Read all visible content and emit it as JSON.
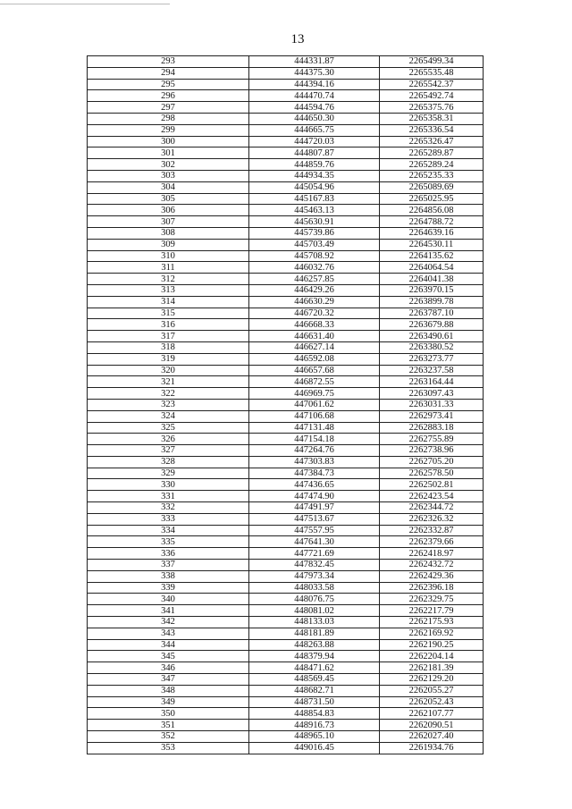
{
  "page_number": "13",
  "table": {
    "rows": [
      [
        "293",
        "444331.87",
        "2265499.34"
      ],
      [
        "294",
        "444375.30",
        "2265535.48"
      ],
      [
        "295",
        "444394.16",
        "2265542.37"
      ],
      [
        "296",
        "444470.74",
        "2265492.74"
      ],
      [
        "297",
        "444594.76",
        "2265375.76"
      ],
      [
        "298",
        "444650.30",
        "2265358.31"
      ],
      [
        "299",
        "444665.75",
        "2265336.54"
      ],
      [
        "300",
        "444720.03",
        "2265326.47"
      ],
      [
        "301",
        "444807.87",
        "2265289.87"
      ],
      [
        "302",
        "444859.76",
        "2265289.24"
      ],
      [
        "303",
        "444934.35",
        "2265235.33"
      ],
      [
        "304",
        "445054.96",
        "2265089.69"
      ],
      [
        "305",
        "445167.83",
        "2265025.95"
      ],
      [
        "306",
        "445463.13",
        "2264856.08"
      ],
      [
        "307",
        "445630.91",
        "2264788.72"
      ],
      [
        "308",
        "445739.86",
        "2264639.16"
      ],
      [
        "309",
        "445703.49",
        "2264530.11"
      ],
      [
        "310",
        "445708.92",
        "2264135.62"
      ],
      [
        "311",
        "446032.76",
        "2264064.54"
      ],
      [
        "312",
        "446257.85",
        "2264041.38"
      ],
      [
        "313",
        "446429.26",
        "2263970.15"
      ],
      [
        "314",
        "446630.29",
        "2263899.78"
      ],
      [
        "315",
        "446720.32",
        "2263787.10"
      ],
      [
        "316",
        "446668.33",
        "2263679.88"
      ],
      [
        "317",
        "446631.40",
        "2263490.61"
      ],
      [
        "318",
        "446627.14",
        "2263380.52"
      ],
      [
        "319",
        "446592.08",
        "2263273.77"
      ],
      [
        "320",
        "446657.68",
        "2263237.58"
      ],
      [
        "321",
        "446872.55",
        "2263164.44"
      ],
      [
        "322",
        "446969.75",
        "2263097.43"
      ],
      [
        "323",
        "447061.62",
        "2263031.33"
      ],
      [
        "324",
        "447106.68",
        "2262973.41"
      ],
      [
        "325",
        "447131.48",
        "2262883.18"
      ],
      [
        "326",
        "447154.18",
        "2262755.89"
      ],
      [
        "327",
        "447264.76",
        "2262738.96"
      ],
      [
        "328",
        "447303.83",
        "2262705.20"
      ],
      [
        "329",
        "447384.73",
        "2262578.50"
      ],
      [
        "330",
        "447436.65",
        "2262502.81"
      ],
      [
        "331",
        "447474.90",
        "2262423.54"
      ],
      [
        "332",
        "447491.97",
        "2262344.72"
      ],
      [
        "333",
        "447513.67",
        "2262326.32"
      ],
      [
        "334",
        "447557.95",
        "2262332.87"
      ],
      [
        "335",
        "447641.30",
        "2262379.66"
      ],
      [
        "336",
        "447721.69",
        "2262418.97"
      ],
      [
        "337",
        "447832.45",
        "2262432.72"
      ],
      [
        "338",
        "447973.34",
        "2262429.36"
      ],
      [
        "339",
        "448033.58",
        "2262396.18"
      ],
      [
        "340",
        "448076.75",
        "2262329.75"
      ],
      [
        "341",
        "448081.02",
        "2262217.79"
      ],
      [
        "342",
        "448133.03",
        "2262175.93"
      ],
      [
        "343",
        "448181.89",
        "2262169.92"
      ],
      [
        "344",
        "448263.88",
        "2262190.25"
      ],
      [
        "345",
        "448379.94",
        "2262204.14"
      ],
      [
        "346",
        "448471.62",
        "2262181.39"
      ],
      [
        "347",
        "448569.45",
        "2262129.20"
      ],
      [
        "348",
        "448682.71",
        "2262055.27"
      ],
      [
        "349",
        "448731.50",
        "2262052.43"
      ],
      [
        "350",
        "448854.83",
        "2262107.77"
      ],
      [
        "351",
        "448916.73",
        "2262090.51"
      ],
      [
        "352",
        "448965.10",
        "2262027.40"
      ],
      [
        "353",
        "449016.45",
        "2261934.76"
      ]
    ]
  }
}
